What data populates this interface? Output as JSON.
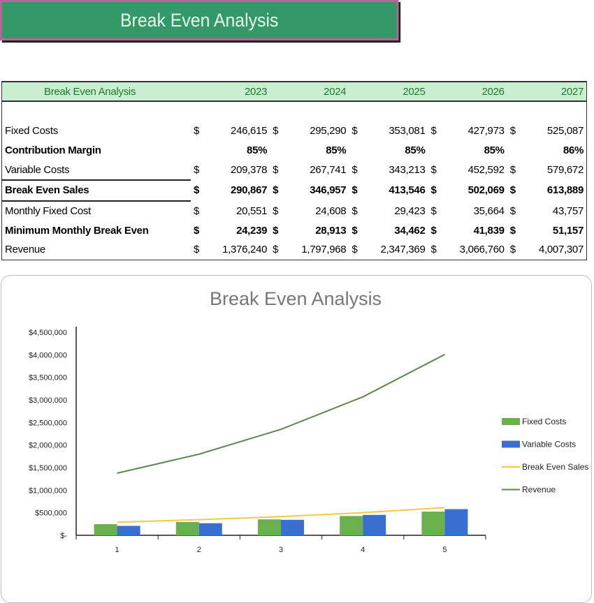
{
  "banner": {
    "title": "Break Even Analysis"
  },
  "table": {
    "header": [
      "Break Even Analysis",
      "2023",
      "2024",
      "2025",
      "2026",
      "2027"
    ],
    "rows": [
      {
        "label": "Fixed Costs",
        "currency": true,
        "values": [
          "246,615",
          "295,290",
          "353,081",
          "427,973",
          "525,087"
        ]
      },
      {
        "label": "Contribution Margin",
        "currency": false,
        "bold": true,
        "values": [
          "85%",
          "85%",
          "85%",
          "85%",
          "86%"
        ]
      },
      {
        "label": "Variable Costs",
        "currency": true,
        "values": [
          "209,378",
          "267,741",
          "343,213",
          "452,592",
          "579,672"
        ]
      },
      {
        "label": "Break Even Sales",
        "currency": true,
        "bold": true,
        "values": [
          "290,867",
          "346,957",
          "413,546",
          "502,069",
          "613,889"
        ]
      },
      {
        "label": "Monthly Fixed Cost",
        "currency": true,
        "values": [
          "20,551",
          "24,608",
          "29,423",
          "35,664",
          "43,757"
        ]
      },
      {
        "label": "Minimum Monthly Break Even",
        "currency": true,
        "bold": true,
        "values": [
          "24,239",
          "28,913",
          "34,462",
          "41,839",
          "51,157"
        ]
      },
      {
        "label": "Revenue",
        "currency": true,
        "values": [
          "1,376,240",
          "1,797,968",
          "2,347,369",
          "3,066,760",
          "4,007,307"
        ]
      }
    ],
    "currency_symbol": "$"
  },
  "chart_data": {
    "type": "bar",
    "title": "Break Even Analysis",
    "categories": [
      "1",
      "2",
      "3",
      "4",
      "5"
    ],
    "ylim": [
      0,
      4500000
    ],
    "yticks": [
      "$-",
      "$500,000",
      "$1,000,000",
      "$1,500,000",
      "$2,000,000",
      "$2,500,000",
      "$3,000,000",
      "$3,500,000",
      "$4,000,000",
      "$4,500,000"
    ],
    "legend_position": "right",
    "series": [
      {
        "name": "Fixed Costs",
        "kind": "bar",
        "color": "#6ab04c",
        "values": [
          246615,
          295290,
          353081,
          427973,
          525087
        ]
      },
      {
        "name": "Variable Costs",
        "kind": "bar",
        "color": "#3a6fd0",
        "values": [
          209378,
          267741,
          343213,
          452592,
          579672
        ]
      },
      {
        "name": "Break Even Sales",
        "kind": "line",
        "color": "#f5c842",
        "values": [
          290867,
          346957,
          413546,
          502069,
          613889
        ]
      },
      {
        "name": "Revenue",
        "kind": "line",
        "color": "#5a8a4a",
        "values": [
          1376240,
          1797968,
          2347369,
          3066760,
          4007307
        ]
      }
    ]
  }
}
